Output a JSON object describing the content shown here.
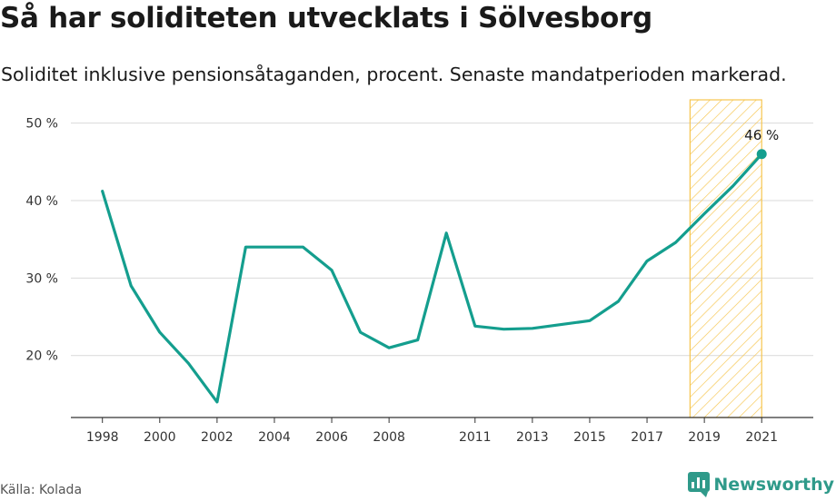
{
  "header": {
    "title": "Så har soliditeten utvecklats i Sölvesborg",
    "subtitle": "Soliditet inklusive pensionsåtaganden, procent. Senaste mandatperioden markerad."
  },
  "footer": {
    "source": "Källa: Kolada",
    "brand": "Newsworthy"
  },
  "colors": {
    "line": "#149e8e",
    "highlight_fill": "#f6c54e",
    "highlight_border": "#f6c54e",
    "grid": "#d9d9d9",
    "brand": "#2f9a8a"
  },
  "icons": {
    "brand_logo": "bar-chart-speech-icon"
  },
  "chart_data": {
    "type": "line",
    "title": "Så har soliditeten utvecklats i Sölvesborg",
    "subtitle": "Soliditet inklusive pensionsåtaganden, procent. Senaste mandatperioden markerad.",
    "xlabel": "",
    "ylabel": "",
    "x": [
      1998,
      1999,
      2000,
      2001,
      2002,
      2003,
      2004,
      2005,
      2006,
      2007,
      2008,
      2009,
      2010,
      2011,
      2012,
      2013,
      2014,
      2015,
      2016,
      2017,
      2018,
      2019,
      2020,
      2021
    ],
    "series": [
      {
        "values": [
          41.2,
          29.0,
          23.0,
          19.0,
          14.0,
          34.0,
          34.0,
          34.0,
          31.0,
          23.0,
          21.0,
          22.0,
          35.8,
          23.8,
          23.4,
          23.5,
          24.0,
          24.5,
          27.0,
          32.2,
          34.6,
          38.3,
          41.9,
          46.0
        ]
      }
    ],
    "x_tick_labels": [
      "1998",
      "2000",
      "2002",
      "2004",
      "2006",
      "2008",
      "2011",
      "2013",
      "2015",
      "2017",
      "2019",
      "2021"
    ],
    "y_ticks": [
      20,
      30,
      40,
      50
    ],
    "y_tick_labels": [
      "20 %",
      "30 %",
      "40 %",
      "50 %"
    ],
    "xlim": [
      1996.9,
      2022.8
    ],
    "ylim": [
      12,
      53
    ],
    "highlight_range": [
      2018.5,
      2021
    ],
    "last_value_label": "46 %",
    "grid": true,
    "legend": "none"
  }
}
